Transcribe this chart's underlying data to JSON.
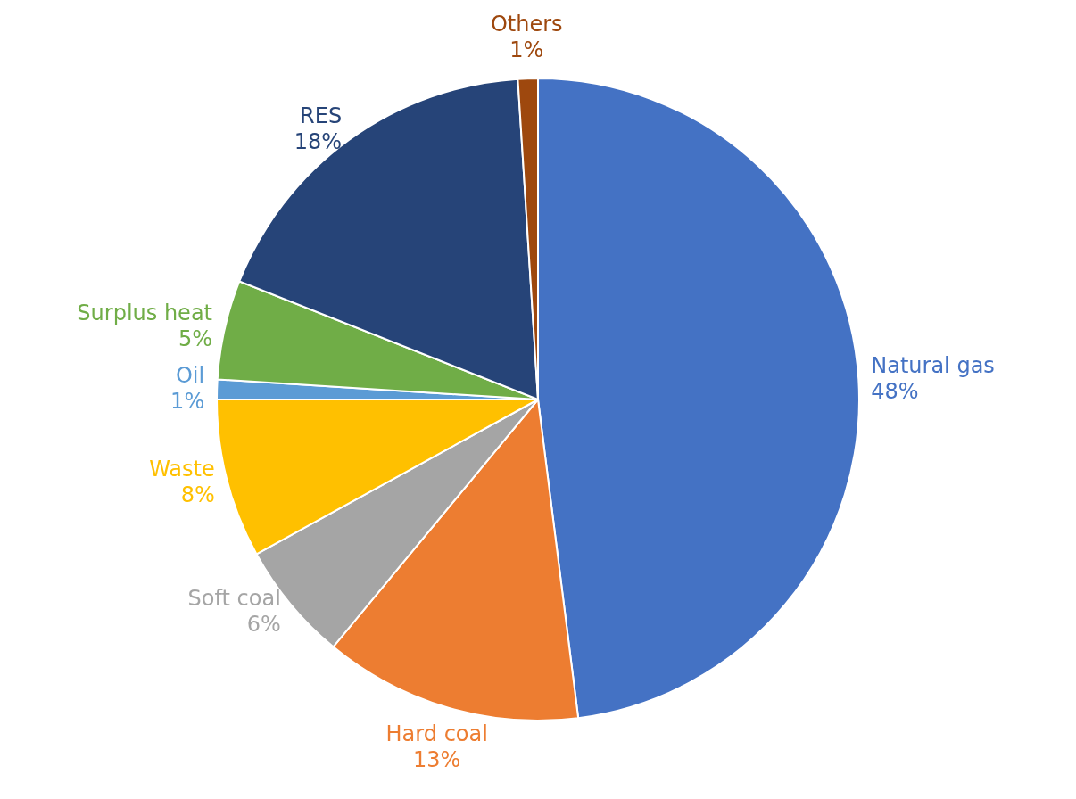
{
  "chart_data": {
    "type": "pie",
    "categories": [
      "Natural gas",
      "Hard coal",
      "Soft coal",
      "Waste",
      "Oil",
      "Surplus heat",
      "RES",
      "Others"
    ],
    "values": [
      48,
      13,
      6,
      8,
      1,
      5,
      18,
      1
    ],
    "value_labels": [
      "48%",
      "13%",
      "6%",
      "8%",
      "1%",
      "5%",
      "18%",
      "1%"
    ],
    "colors": [
      "#4472c4",
      "#ed7d31",
      "#a5a5a5",
      "#ffc000",
      "#5b9bd5",
      "#70ad47",
      "#264478",
      "#9e480e"
    ],
    "legend": false
  }
}
